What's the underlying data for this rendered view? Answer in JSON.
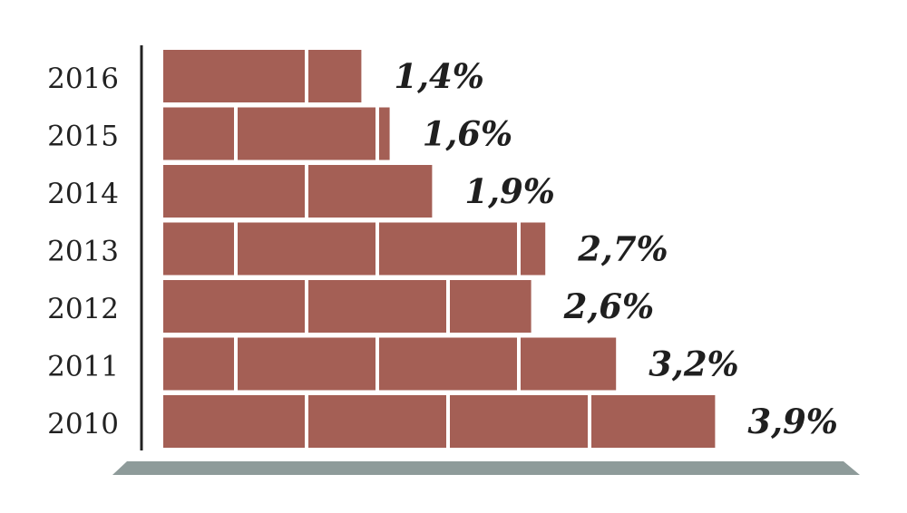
{
  "chart_data": {
    "type": "bar",
    "orientation": "horizontal",
    "categories": [
      "2016",
      "2015",
      "2014",
      "2013",
      "2012",
      "2011",
      "2010"
    ],
    "values": [
      1.4,
      1.6,
      1.9,
      2.7,
      2.6,
      3.2,
      3.9
    ],
    "value_labels": [
      "1,4%",
      "1,6%",
      "1,9%",
      "2,7%",
      "2,6%",
      "3,2%",
      "3,9%"
    ],
    "title": "",
    "xlabel": "",
    "ylabel": "",
    "grid": false,
    "legend": "none",
    "style": "brick",
    "colors": {
      "brick": "#a45f55",
      "mortar": "#ffffff",
      "ground": "#8e9b9a",
      "axis": "#222222"
    }
  }
}
